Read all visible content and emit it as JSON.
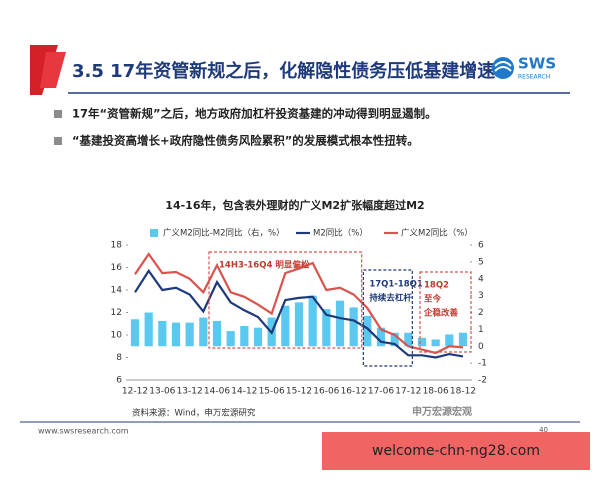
{
  "header": {
    "title": "3.5 17年资管新规之后，化解隐性债务压低基建增速",
    "logo": "SWS",
    "logo_sub": "RESEARCH"
  },
  "bullets": [
    "17年“资管新规”之后，地方政府加杠杆投资基建的冲动得到明显遏制。",
    "“基建投资高增长+政府隐性债务风险累积”的发展模式根本性扭转。"
  ],
  "chart_data": {
    "type": "combo",
    "title": "14-16年，包含表外理财的广义M2扩张幅度超过M2",
    "categories": [
      "12-12",
      null,
      "13-06",
      null,
      "13-12",
      null,
      "14-06",
      null,
      "14-12",
      null,
      "15-06",
      null,
      "15-12",
      null,
      "16-06",
      null,
      "16-12",
      null,
      "17-06",
      null,
      "17-12",
      null,
      "18-06",
      null,
      "18-12"
    ],
    "series": [
      {
        "name": "广义M2同比-M2同比（右，%）",
        "type": "bar",
        "axis": "y2",
        "color": "#5bc8f0",
        "values": [
          1.6,
          2.0,
          1.5,
          1.4,
          1.4,
          1.7,
          1.5,
          0.9,
          1.2,
          1.1,
          1.7,
          2.4,
          2.6,
          3.0,
          2.2,
          2.7,
          2.3,
          1.8,
          1.1,
          0.8,
          0.8,
          0.5,
          0.4,
          0.7,
          0.8
        ]
      },
      {
        "name": "M2同比（%）",
        "type": "line",
        "color": "#1f3a7a",
        "values": [
          13.8,
          15.7,
          14.0,
          14.2,
          13.6,
          12.1,
          14.7,
          12.9,
          12.2,
          11.6,
          10.2,
          13.1,
          13.3,
          13.4,
          11.8,
          11.5,
          11.3,
          10.6,
          9.4,
          9.2,
          8.2,
          8.2,
          8.0,
          8.3,
          8.1
        ]
      },
      {
        "name": "广义M2同比（%）",
        "type": "line",
        "color": "#d9534f",
        "values": [
          15.4,
          17.2,
          15.5,
          15.6,
          15.0,
          13.8,
          16.2,
          13.8,
          13.4,
          12.7,
          11.9,
          15.5,
          15.9,
          16.4,
          14.0,
          14.2,
          13.6,
          12.4,
          10.5,
          10.0,
          9.0,
          8.7,
          8.4,
          9.0,
          8.9
        ]
      }
    ],
    "ylim": [
      6,
      18
    ],
    "yticks": [
      6,
      8,
      10,
      12,
      14,
      16,
      18
    ],
    "y2lim": [
      -2,
      6
    ],
    "y2ticks": [
      -2,
      -1,
      0,
      1,
      2,
      3,
      4,
      5,
      6
    ],
    "annotations": [
      [
        "14H3-16Q4  明显偏松"
      ],
      [
        "17Q1-18Q1",
        "持续去杠杆"
      ],
      [
        "18Q2",
        "至今",
        "企稳改善"
      ]
    ],
    "source": "资料来源：Wind，申万宏源研究"
  },
  "footer": {
    "url": "www.swsresearch.com",
    "page": "40",
    "brand": "申万宏源宏观",
    "watermark": "welcome-chn-ng28.com"
  }
}
